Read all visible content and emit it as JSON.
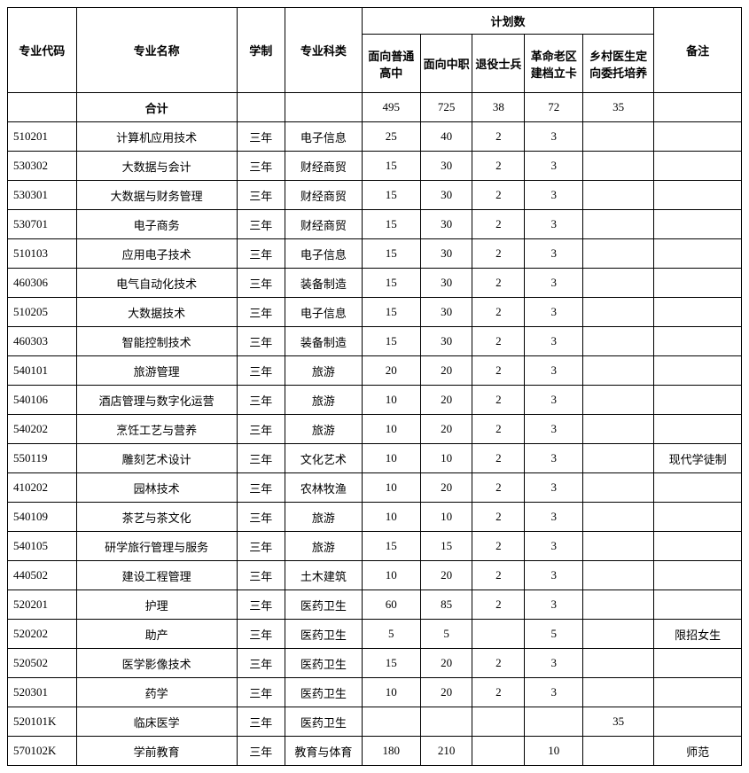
{
  "table": {
    "headers": {
      "code": "专业代码",
      "name": "专业名称",
      "duration": "学制",
      "category": "专业科类",
      "quota_group": "计划数",
      "quota1": "面向普通高中",
      "quota2": "面向中职",
      "quota3": "退役士兵",
      "quota4": "革命老区建档立卡",
      "quota5": "乡村医生定向委托培养",
      "note": "备注"
    },
    "total_label": "合计",
    "totals": {
      "q1": "495",
      "q2": "725",
      "q3": "38",
      "q4": "72",
      "q5": "35"
    },
    "rows": [
      {
        "code": "510201",
        "name": "计算机应用技术",
        "duration": "三年",
        "category": "电子信息",
        "q1": "25",
        "q2": "40",
        "q3": "2",
        "q4": "3",
        "q5": "",
        "note": ""
      },
      {
        "code": "530302",
        "name": "大数据与会计",
        "duration": "三年",
        "category": "财经商贸",
        "q1": "15",
        "q2": "30",
        "q3": "2",
        "q4": "3",
        "q5": "",
        "note": ""
      },
      {
        "code": "530301",
        "name": "大数据与财务管理",
        "duration": "三年",
        "category": "财经商贸",
        "q1": "15",
        "q2": "30",
        "q3": "2",
        "q4": "3",
        "q5": "",
        "note": ""
      },
      {
        "code": "530701",
        "name": "电子商务",
        "duration": "三年",
        "category": "财经商贸",
        "q1": "15",
        "q2": "30",
        "q3": "2",
        "q4": "3",
        "q5": "",
        "note": ""
      },
      {
        "code": "510103",
        "name": "应用电子技术",
        "duration": "三年",
        "category": "电子信息",
        "q1": "15",
        "q2": "30",
        "q3": "2",
        "q4": "3",
        "q5": "",
        "note": ""
      },
      {
        "code": "460306",
        "name": "电气自动化技术",
        "duration": "三年",
        "category": "装备制造",
        "q1": "15",
        "q2": "30",
        "q3": "2",
        "q4": "3",
        "q5": "",
        "note": ""
      },
      {
        "code": "510205",
        "name": "大数据技术",
        "duration": "三年",
        "category": "电子信息",
        "q1": "15",
        "q2": "30",
        "q3": "2",
        "q4": "3",
        "q5": "",
        "note": ""
      },
      {
        "code": "460303",
        "name": "智能控制技术",
        "duration": "三年",
        "category": "装备制造",
        "q1": "15",
        "q2": "30",
        "q3": "2",
        "q4": "3",
        "q5": "",
        "note": ""
      },
      {
        "code": "540101",
        "name": "旅游管理",
        "duration": "三年",
        "category": "旅游",
        "q1": "20",
        "q2": "20",
        "q3": "2",
        "q4": "3",
        "q5": "",
        "note": ""
      },
      {
        "code": "540106",
        "name": "酒店管理与数字化运营",
        "duration": "三年",
        "category": "旅游",
        "q1": "10",
        "q2": "20",
        "q3": "2",
        "q4": "3",
        "q5": "",
        "note": ""
      },
      {
        "code": "540202",
        "name": "烹饪工艺与营养",
        "duration": "三年",
        "category": "旅游",
        "q1": "10",
        "q2": "20",
        "q3": "2",
        "q4": "3",
        "q5": "",
        "note": ""
      },
      {
        "code": "550119",
        "name": "雕刻艺术设计",
        "duration": "三年",
        "category": "文化艺术",
        "q1": "10",
        "q2": "10",
        "q3": "2",
        "q4": "3",
        "q5": "",
        "note": "现代学徒制"
      },
      {
        "code": "410202",
        "name": "园林技术",
        "duration": "三年",
        "category": "农林牧渔",
        "q1": "10",
        "q2": "20",
        "q3": "2",
        "q4": "3",
        "q5": "",
        "note": ""
      },
      {
        "code": "540109",
        "name": "茶艺与茶文化",
        "duration": "三年",
        "category": "旅游",
        "q1": "10",
        "q2": "10",
        "q3": "2",
        "q4": "3",
        "q5": "",
        "note": ""
      },
      {
        "code": "540105",
        "name": "研学旅行管理与服务",
        "duration": "三年",
        "category": "旅游",
        "q1": "15",
        "q2": "15",
        "q3": "2",
        "q4": "3",
        "q5": "",
        "note": ""
      },
      {
        "code": "440502",
        "name": "建设工程管理",
        "duration": "三年",
        "category": "土木建筑",
        "q1": "10",
        "q2": "20",
        "q3": "2",
        "q4": "3",
        "q5": "",
        "note": ""
      },
      {
        "code": "520201",
        "name": "护理",
        "duration": "三年",
        "category": "医药卫生",
        "q1": "60",
        "q2": "85",
        "q3": "2",
        "q4": "3",
        "q5": "",
        "note": ""
      },
      {
        "code": "520202",
        "name": "助产",
        "duration": "三年",
        "category": "医药卫生",
        "q1": "5",
        "q2": "5",
        "q3": "",
        "q4": "5",
        "q5": "",
        "note": "限招女生"
      },
      {
        "code": "520502",
        "name": "医学影像技术",
        "duration": "三年",
        "category": "医药卫生",
        "q1": "15",
        "q2": "20",
        "q3": "2",
        "q4": "3",
        "q5": "",
        "note": ""
      },
      {
        "code": "520301",
        "name": "药学",
        "duration": "三年",
        "category": "医药卫生",
        "q1": "10",
        "q2": "20",
        "q3": "2",
        "q4": "3",
        "q5": "",
        "note": ""
      },
      {
        "code": "520101K",
        "name": "临床医学",
        "duration": "三年",
        "category": "医药卫生",
        "q1": "",
        "q2": "",
        "q3": "",
        "q4": "",
        "q5": "35",
        "note": ""
      },
      {
        "code": "570102K",
        "name": "学前教育",
        "duration": "三年",
        "category": "教育与体育",
        "q1": "180",
        "q2": "210",
        "q3": "",
        "q4": "10",
        "q5": "",
        "note": "师范"
      }
    ]
  },
  "style": {
    "background_color": "#ffffff",
    "border_color": "#000000",
    "text_color": "#000000",
    "font_size_body": 13,
    "font_size_header": 13
  }
}
